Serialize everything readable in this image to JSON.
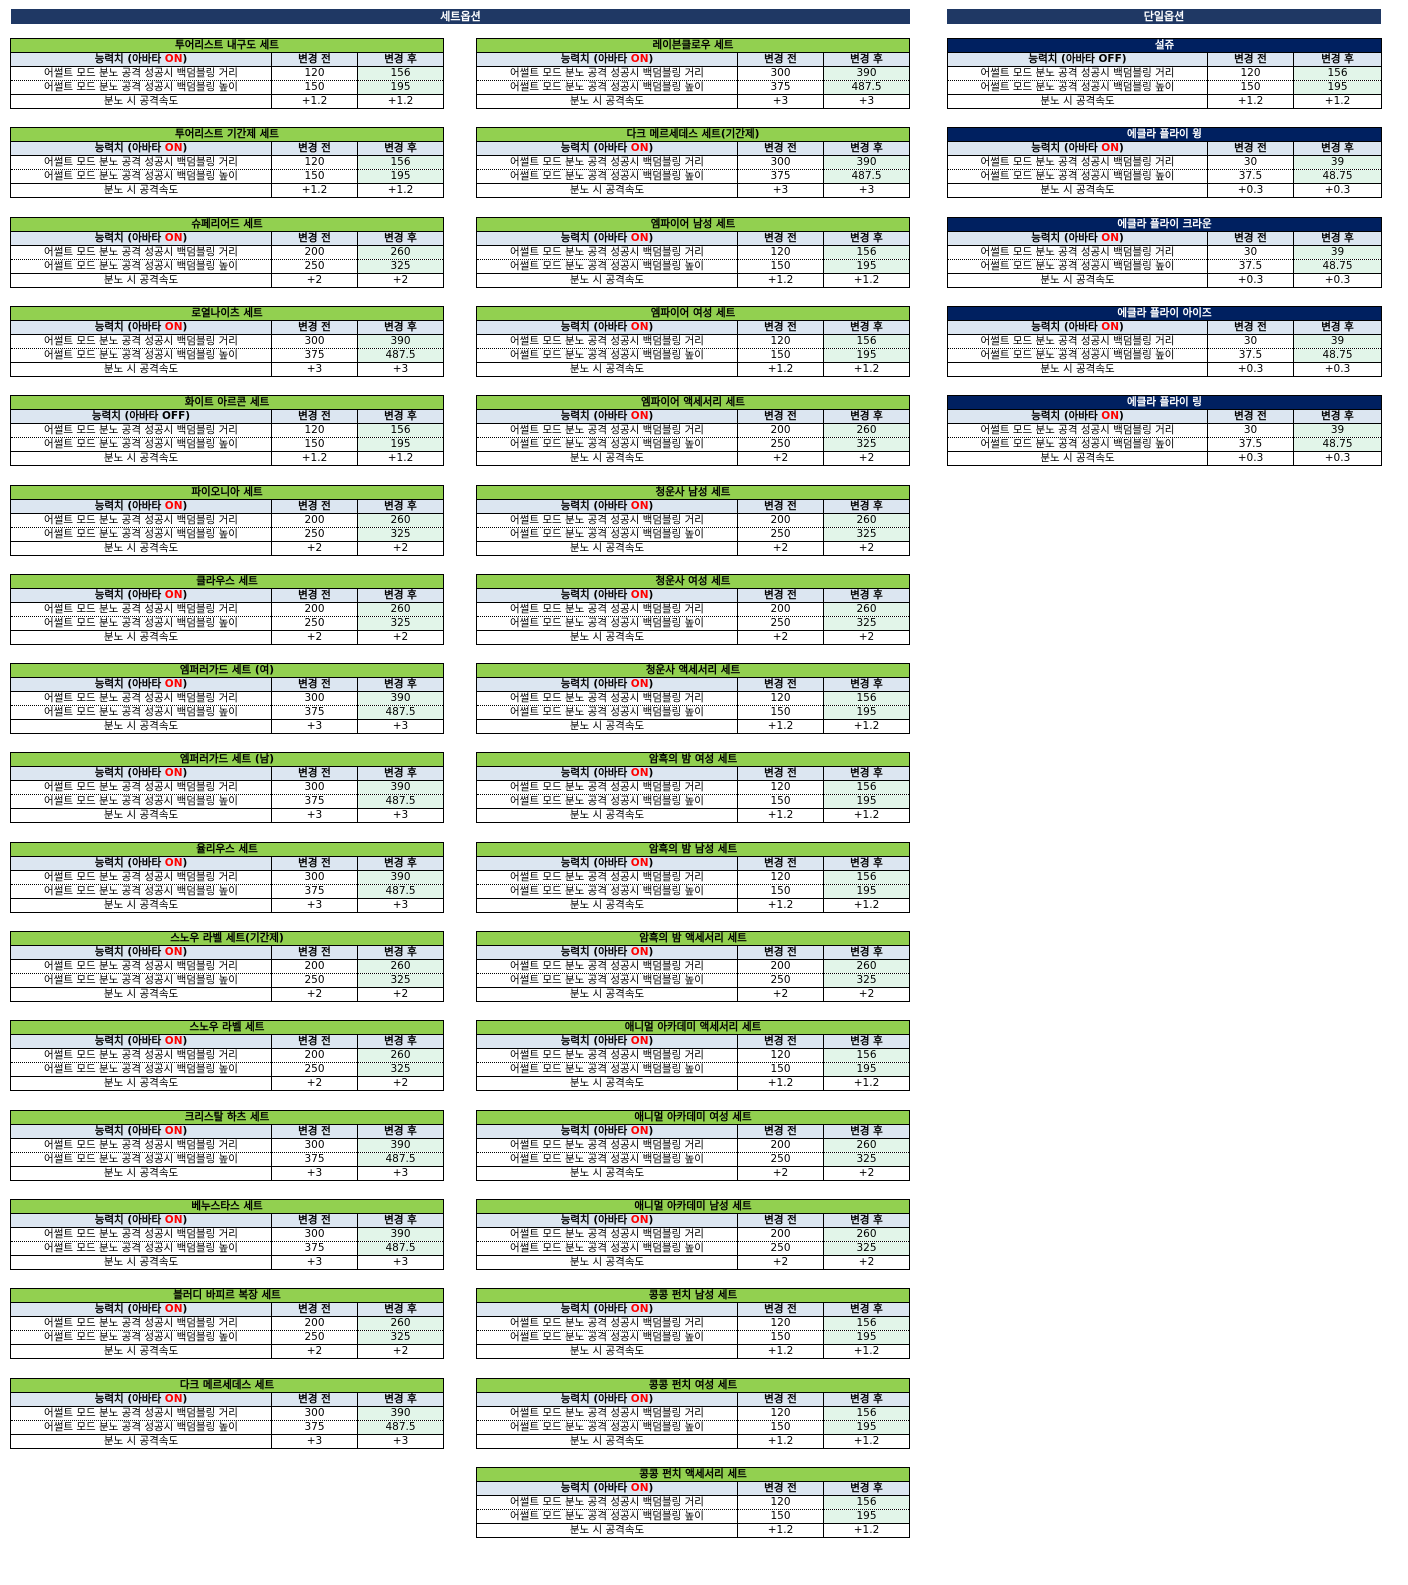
{
  "sections": {
    "set": "세트옵션",
    "single": "단일옵션"
  },
  "labels": {
    "stat_prefix": "능력치 (아바타 ",
    "stat_suffix": ")",
    "before": "변경 전",
    "after": "변경 후",
    "row1": "어썰트 모드 분노 공격 성공시 백덤블링 거리",
    "row2": "어썰트 모드 분노 공격 성공시 백덤블링 높이",
    "row3": "분노 시 공격속도"
  },
  "columns": [
    {
      "key": "left",
      "tables": [
        {
          "title": "투어리스트 내구도 세트",
          "avatar": "ON",
          "r1": [
            "120",
            "156"
          ],
          "r2": [
            "150",
            "195"
          ],
          "r3": [
            "+1.2",
            "+1.2"
          ]
        },
        {
          "title": "투어리스트 기간제 세트",
          "avatar": "ON",
          "r1": [
            "120",
            "156"
          ],
          "r2": [
            "150",
            "195"
          ],
          "r3": [
            "+1.2",
            "+1.2"
          ]
        },
        {
          "title": "슈페리어드 세트",
          "avatar": "ON",
          "r1": [
            "200",
            "260"
          ],
          "r2": [
            "250",
            "325"
          ],
          "r3": [
            "+2",
            "+2"
          ]
        },
        {
          "title": "로열나이츠 세트",
          "avatar": "ON",
          "r1": [
            "300",
            "390"
          ],
          "r2": [
            "375",
            "487.5"
          ],
          "r3": [
            "+3",
            "+3"
          ]
        },
        {
          "title": "화이트 아르콘 세트",
          "avatar": "OFF",
          "r1": [
            "120",
            "156"
          ],
          "r2": [
            "150",
            "195"
          ],
          "r3": [
            "+1.2",
            "+1.2"
          ]
        },
        {
          "title": "파이오니아 세트",
          "avatar": "ON",
          "r1": [
            "200",
            "260"
          ],
          "r2": [
            "250",
            "325"
          ],
          "r3": [
            "+2",
            "+2"
          ]
        },
        {
          "title": "클라우스 세트",
          "avatar": "ON",
          "r1": [
            "200",
            "260"
          ],
          "r2": [
            "250",
            "325"
          ],
          "r3": [
            "+2",
            "+2"
          ]
        },
        {
          "title": "엠퍼러가드 세트 (여)",
          "avatar": "ON",
          "r1": [
            "300",
            "390"
          ],
          "r2": [
            "375",
            "487.5"
          ],
          "r3": [
            "+3",
            "+3"
          ]
        },
        {
          "title": "엠퍼러가드 세트 (남)",
          "avatar": "ON",
          "r1": [
            "300",
            "390"
          ],
          "r2": [
            "375",
            "487.5"
          ],
          "r3": [
            "+3",
            "+3"
          ]
        },
        {
          "title": "율리우스 세트",
          "avatar": "ON",
          "r1": [
            "300",
            "390"
          ],
          "r2": [
            "375",
            "487.5"
          ],
          "r3": [
            "+3",
            "+3"
          ]
        },
        {
          "title": "스노우 라벨 세트(기간제)",
          "avatar": "ON",
          "r1": [
            "200",
            "260"
          ],
          "r2": [
            "250",
            "325"
          ],
          "r3": [
            "+2",
            "+2"
          ]
        },
        {
          "title": "스노우 라벨 세트",
          "avatar": "ON",
          "r1": [
            "200",
            "260"
          ],
          "r2": [
            "250",
            "325"
          ],
          "r3": [
            "+2",
            "+2"
          ]
        },
        {
          "title": "크리스탈 하츠 세트",
          "avatar": "ON",
          "r1": [
            "300",
            "390"
          ],
          "r2": [
            "375",
            "487.5"
          ],
          "r3": [
            "+3",
            "+3"
          ]
        },
        {
          "title": "베누스타스 세트",
          "avatar": "ON",
          "r1": [
            "300",
            "390"
          ],
          "r2": [
            "375",
            "487.5"
          ],
          "r3": [
            "+3",
            "+3"
          ]
        },
        {
          "title": "블러디 바피르 복장 세트",
          "avatar": "ON",
          "r1": [
            "200",
            "260"
          ],
          "r2": [
            "250",
            "325"
          ],
          "r3": [
            "+2",
            "+2"
          ]
        },
        {
          "title": "다크 메르세데스 세트",
          "avatar": "ON",
          "r1": [
            "300",
            "390"
          ],
          "r2": [
            "375",
            "487.5"
          ],
          "r3": [
            "+3",
            "+3"
          ]
        }
      ]
    },
    {
      "key": "middle",
      "tables": [
        {
          "title": "레이븐클로우 세트",
          "avatar": "ON",
          "r1": [
            "300",
            "390"
          ],
          "r2": [
            "375",
            "487.5"
          ],
          "r3": [
            "+3",
            "+3"
          ]
        },
        {
          "title": "다크 메르세데스 세트(기간제)",
          "avatar": "ON",
          "r1": [
            "300",
            "390"
          ],
          "r2": [
            "375",
            "487.5"
          ],
          "r3": [
            "+3",
            "+3"
          ]
        },
        {
          "title": "엠파이어 남성 세트",
          "avatar": "ON",
          "r1": [
            "120",
            "156"
          ],
          "r2": [
            "150",
            "195"
          ],
          "r3": [
            "+1.2",
            "+1.2"
          ]
        },
        {
          "title": "엠파이어 여성 세트",
          "avatar": "ON",
          "r1": [
            "120",
            "156"
          ],
          "r2": [
            "150",
            "195"
          ],
          "r3": [
            "+1.2",
            "+1.2"
          ]
        },
        {
          "title": "엠파이어 액세서리 세트",
          "avatar": "ON",
          "r1": [
            "200",
            "260"
          ],
          "r2": [
            "250",
            "325"
          ],
          "r3": [
            "+2",
            "+2"
          ]
        },
        {
          "title": "청운사 남성 세트",
          "avatar": "ON",
          "r1": [
            "200",
            "260"
          ],
          "r2": [
            "250",
            "325"
          ],
          "r3": [
            "+2",
            "+2"
          ]
        },
        {
          "title": "청운사 여성 세트",
          "avatar": "ON",
          "r1": [
            "200",
            "260"
          ],
          "r2": [
            "250",
            "325"
          ],
          "r3": [
            "+2",
            "+2"
          ]
        },
        {
          "title": "청운사 액세서리 세트",
          "avatar": "ON",
          "r1": [
            "120",
            "156"
          ],
          "r2": [
            "150",
            "195"
          ],
          "r3": [
            "+1.2",
            "+1.2"
          ]
        },
        {
          "title": "암흑의 밤 여성 세트",
          "avatar": "ON",
          "r1": [
            "120",
            "156"
          ],
          "r2": [
            "150",
            "195"
          ],
          "r3": [
            "+1.2",
            "+1.2"
          ]
        },
        {
          "title": "암흑의 밤 남성 세트",
          "avatar": "ON",
          "r1": [
            "120",
            "156"
          ],
          "r2": [
            "150",
            "195"
          ],
          "r3": [
            "+1.2",
            "+1.2"
          ]
        },
        {
          "title": "암흑의 밤 액세서리 세트",
          "avatar": "ON",
          "r1": [
            "200",
            "260"
          ],
          "r2": [
            "250",
            "325"
          ],
          "r3": [
            "+2",
            "+2"
          ]
        },
        {
          "title": "애니멀 아카데미 액세서리 세트",
          "avatar": "ON",
          "r1": [
            "120",
            "156"
          ],
          "r2": [
            "150",
            "195"
          ],
          "r3": [
            "+1.2",
            "+1.2"
          ]
        },
        {
          "title": "애니멀 아카데미 여성 세트",
          "avatar": "ON",
          "r1": [
            "200",
            "260"
          ],
          "r2": [
            "250",
            "325"
          ],
          "r3": [
            "+2",
            "+2"
          ]
        },
        {
          "title": "애니멀 아카데미 남성 세트",
          "avatar": "ON",
          "r1": [
            "200",
            "260"
          ],
          "r2": [
            "250",
            "325"
          ],
          "r3": [
            "+2",
            "+2"
          ]
        },
        {
          "title": "콩콩 펀치 남성 세트",
          "avatar": "ON",
          "r1": [
            "120",
            "156"
          ],
          "r2": [
            "150",
            "195"
          ],
          "r3": [
            "+1.2",
            "+1.2"
          ]
        },
        {
          "title": "콩콩 펀치 여성 세트",
          "avatar": "ON",
          "r1": [
            "120",
            "156"
          ],
          "r2": [
            "150",
            "195"
          ],
          "r3": [
            "+1.2",
            "+1.2"
          ]
        },
        {
          "title": "콩콩 펀치 액세서리 세트",
          "avatar": "ON",
          "r1": [
            "120",
            "156"
          ],
          "r2": [
            "150",
            "195"
          ],
          "r3": [
            "+1.2",
            "+1.2"
          ]
        }
      ]
    },
    {
      "key": "right",
      "tables": [
        {
          "title": "설쥬",
          "avatar": "OFF",
          "r1": [
            "120",
            "156"
          ],
          "r2": [
            "150",
            "195"
          ],
          "r3": [
            "+1.2",
            "+1.2"
          ]
        },
        {
          "title": "에클라 플라이 윙",
          "avatar": "ON",
          "r1": [
            "30",
            "39"
          ],
          "r2": [
            "37.5",
            "48.75"
          ],
          "r3": [
            "+0.3",
            "+0.3"
          ]
        },
        {
          "title": "에클라 플라이 크라운",
          "avatar": "ON",
          "r1": [
            "30",
            "39"
          ],
          "r2": [
            "37.5",
            "48.75"
          ],
          "r3": [
            "+0.3",
            "+0.3"
          ]
        },
        {
          "title": "에클라 플라이 아이즈",
          "avatar": "ON",
          "r1": [
            "30",
            "39"
          ],
          "r2": [
            "37.5",
            "48.75"
          ],
          "r3": [
            "+0.3",
            "+0.3"
          ]
        },
        {
          "title": "에클라 플라이 링",
          "avatar": "ON",
          "r1": [
            "30",
            "39"
          ],
          "r2": [
            "37.5",
            "48.75"
          ],
          "r3": [
            "+0.3",
            "+0.3"
          ]
        }
      ]
    }
  ],
  "colors": {
    "section_header_bg": "#1f3864",
    "set_title_bg": "#92d050",
    "single_title_bg": "#002060",
    "header_row_bg": "#dce6f1",
    "after_cell_bg": "#e2f5e9",
    "on_text": "#ff0000"
  }
}
